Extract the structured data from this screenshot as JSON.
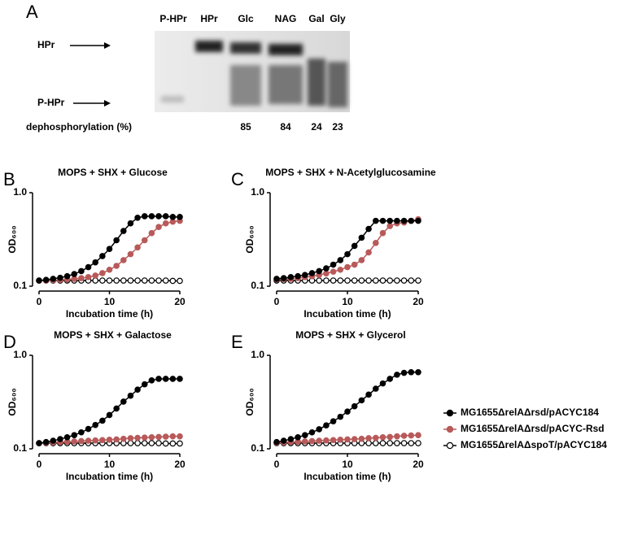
{
  "panel_a": {
    "letter": "A",
    "lanes": [
      "P-HPr",
      "HPr",
      "Glc",
      "NAG",
      "Gal",
      "Gly"
    ],
    "band_labels": [
      "HPr",
      "P-HPr"
    ],
    "row_label": "dephosphorylation (%)",
    "values": [
      85,
      84,
      24,
      23
    ]
  },
  "panel_letters": [
    "B",
    "C",
    "D",
    "E"
  ],
  "chart_data": [
    {
      "type": "line",
      "title": "MOPS + SHX + Glucose",
      "x_label": "Incubation time (h)",
      "y_label": "OD₆₀₀",
      "log_y": true,
      "x": [
        0,
        1,
        2,
        3,
        4,
        5,
        6,
        7,
        8,
        9,
        10,
        11,
        12,
        13,
        14,
        15,
        16,
        17,
        18,
        19,
        20
      ],
      "xlim": [
        0,
        20
      ],
      "xticks": [
        0,
        10,
        20
      ],
      "ylim": [
        0.1,
        1
      ],
      "yticks": [
        0.1,
        {
          "value": 1,
          "label": "1.0"
        }
      ],
      "series": [
        {
          "name": "MG1655ΔrelAΔrsd/pACYC184",
          "color": "#000000",
          "fill": "#000000",
          "values": [
            0.115,
            0.117,
            0.12,
            0.123,
            0.128,
            0.135,
            0.145,
            0.16,
            0.18,
            0.21,
            0.25,
            0.31,
            0.39,
            0.47,
            0.54,
            0.56,
            0.56,
            0.56,
            0.56,
            0.55,
            0.55
          ]
        },
        {
          "name": "MG1655ΔrelAΔrsd/pACYC-Rsd",
          "color": "#b85a5a",
          "fill": "#b85a5a",
          "values": [
            0.115,
            0.115,
            0.116,
            0.117,
            0.118,
            0.12,
            0.122,
            0.125,
            0.13,
            0.138,
            0.15,
            0.165,
            0.19,
            0.22,
            0.26,
            0.31,
            0.37,
            0.43,
            0.47,
            0.49,
            0.5
          ]
        },
        {
          "name": "MG1655ΔrelAΔspoT/pACYC184",
          "color": "#000000",
          "fill": "#ffffff",
          "values": [
            0.115,
            0.115,
            0.115,
            0.115,
            0.115,
            0.115,
            0.115,
            0.115,
            0.115,
            0.115,
            0.115,
            0.115,
            0.115,
            0.115,
            0.115,
            0.115,
            0.115,
            0.115,
            0.115,
            0.114,
            0.114
          ]
        }
      ]
    },
    {
      "type": "line",
      "title": "MOPS + SHX + N-Acetylglucosamine",
      "x_label": "Incubation time (h)",
      "y_label": "OD₆₀₀",
      "log_y": true,
      "x": [
        0,
        1,
        2,
        3,
        4,
        5,
        6,
        7,
        8,
        9,
        10,
        11,
        12,
        13,
        14,
        15,
        16,
        17,
        18,
        19,
        20
      ],
      "xlim": [
        0,
        20
      ],
      "xticks": [
        0,
        10,
        20
      ],
      "ylim": [
        0.1,
        1
      ],
      "yticks": [
        0.1,
        {
          "value": 1,
          "label": "1.0"
        }
      ],
      "series": [
        {
          "name": "MG1655ΔrelAΔrsd/pACYC184",
          "color": "#000000",
          "fill": "#000000",
          "values": [
            0.12,
            0.122,
            0.125,
            0.128,
            0.132,
            0.138,
            0.145,
            0.155,
            0.17,
            0.19,
            0.22,
            0.27,
            0.33,
            0.41,
            0.5,
            0.5,
            0.5,
            0.5,
            0.5,
            0.5,
            0.5
          ]
        },
        {
          "name": "MG1655ΔrelAΔrsd/pACYC-Rsd",
          "color": "#b85a5a",
          "fill": "#b85a5a",
          "values": [
            0.118,
            0.119,
            0.12,
            0.122,
            0.125,
            0.128,
            0.132,
            0.137,
            0.143,
            0.15,
            0.16,
            0.17,
            0.19,
            0.23,
            0.29,
            0.37,
            0.44,
            0.47,
            0.48,
            0.5,
            0.52
          ]
        },
        {
          "name": "MG1655ΔrelAΔspoT/pACYC184",
          "color": "#000000",
          "fill": "#ffffff",
          "values": [
            0.115,
            0.115,
            0.115,
            0.115,
            0.115,
            0.115,
            0.115,
            0.115,
            0.115,
            0.115,
            0.115,
            0.115,
            0.115,
            0.115,
            0.115,
            0.115,
            0.115,
            0.115,
            0.115,
            0.115,
            0.115
          ]
        }
      ]
    },
    {
      "type": "line",
      "title": "MOPS + SHX + Galactose",
      "x_label": "Incubation time (h)",
      "y_label": "OD₆₀₀",
      "log_y": true,
      "x": [
        0,
        1,
        2,
        3,
        4,
        5,
        6,
        7,
        8,
        9,
        10,
        11,
        12,
        13,
        14,
        15,
        16,
        17,
        18,
        19,
        20
      ],
      "xlim": [
        0,
        20
      ],
      "xticks": [
        0,
        10,
        20
      ],
      "ylim": [
        0.1,
        1
      ],
      "yticks": [
        0.1,
        {
          "value": 1,
          "label": "1.0"
        }
      ],
      "series": [
        {
          "name": "MG1655ΔrelAΔrsd/pACYC184",
          "color": "#000000",
          "fill": "#000000",
          "values": [
            0.115,
            0.118,
            0.122,
            0.127,
            0.133,
            0.14,
            0.15,
            0.163,
            0.18,
            0.2,
            0.23,
            0.27,
            0.32,
            0.37,
            0.43,
            0.49,
            0.54,
            0.56,
            0.56,
            0.56,
            0.56
          ]
        },
        {
          "name": "MG1655ΔrelAΔrsd/pACYC-Rsd",
          "color": "#b85a5a",
          "fill": "#b85a5a",
          "values": [
            0.115,
            0.116,
            0.117,
            0.118,
            0.119,
            0.12,
            0.121,
            0.122,
            0.123,
            0.124,
            0.125,
            0.126,
            0.128,
            0.13,
            0.131,
            0.132,
            0.133,
            0.134,
            0.135,
            0.136,
            0.136
          ]
        },
        {
          "name": "MG1655ΔrelAΔspoT/pACYC184",
          "color": "#000000",
          "fill": "#ffffff",
          "values": [
            0.115,
            0.115,
            0.115,
            0.115,
            0.115,
            0.115,
            0.115,
            0.115,
            0.115,
            0.115,
            0.115,
            0.115,
            0.115,
            0.115,
            0.115,
            0.115,
            0.115,
            0.115,
            0.114,
            0.114,
            0.114
          ]
        }
      ]
    },
    {
      "type": "line",
      "title": "MOPS + SHX + Glycerol",
      "x_label": "Incubation time (h)",
      "y_label": "OD₆₀₀",
      "log_y": true,
      "x": [
        0,
        1,
        2,
        3,
        4,
        5,
        6,
        7,
        8,
        9,
        10,
        11,
        12,
        13,
        14,
        15,
        16,
        17,
        18,
        19,
        20
      ],
      "xlim": [
        0,
        20
      ],
      "xticks": [
        0,
        10,
        20
      ],
      "ylim": [
        0.1,
        1
      ],
      "yticks": [
        0.1,
        {
          "value": 1,
          "label": "1.0"
        }
      ],
      "series": [
        {
          "name": "MG1655ΔrelAΔrsd/pACYC184",
          "color": "#000000",
          "fill": "#000000",
          "values": [
            0.118,
            0.122,
            0.127,
            0.133,
            0.14,
            0.15,
            0.162,
            0.178,
            0.197,
            0.22,
            0.25,
            0.285,
            0.33,
            0.38,
            0.44,
            0.5,
            0.56,
            0.62,
            0.65,
            0.66,
            0.66
          ]
        },
        {
          "name": "MG1655ΔrelAΔrsd/pACYC-Rsd",
          "color": "#b85a5a",
          "fill": "#b85a5a",
          "values": [
            0.116,
            0.117,
            0.118,
            0.119,
            0.12,
            0.121,
            0.122,
            0.123,
            0.124,
            0.125,
            0.126,
            0.127,
            0.128,
            0.13,
            0.131,
            0.133,
            0.134,
            0.136,
            0.138,
            0.139,
            0.14
          ]
        },
        {
          "name": "MG1655ΔrelAΔspoT/pACYC184",
          "color": "#000000",
          "fill": "#ffffff",
          "values": [
            0.115,
            0.115,
            0.115,
            0.115,
            0.115,
            0.115,
            0.115,
            0.115,
            0.115,
            0.115,
            0.115,
            0.115,
            0.115,
            0.115,
            0.115,
            0.115,
            0.115,
            0.115,
            0.115,
            0.115,
            0.115
          ]
        }
      ]
    }
  ]
}
